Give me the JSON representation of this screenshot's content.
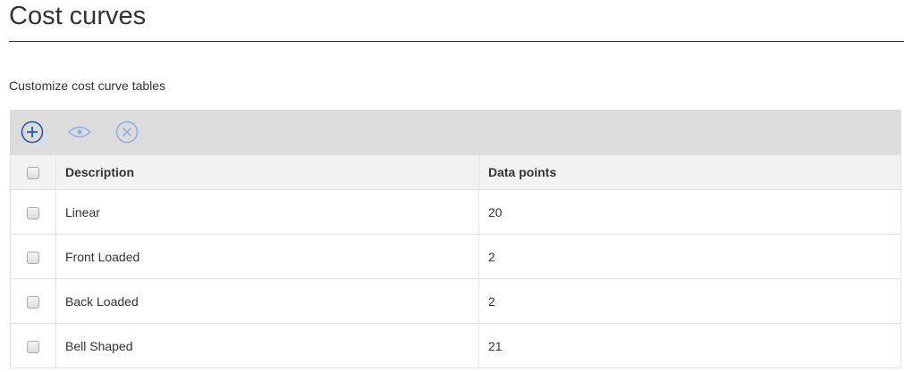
{
  "page": {
    "title": "Cost curves",
    "subtitle": "Customize cost curve tables"
  },
  "toolbar": {
    "icons": [
      "add-circle-icon",
      "eye-icon",
      "close-circle-icon"
    ],
    "colors": {
      "active": "#1a5fc4",
      "disabled": "#8fb0dd"
    }
  },
  "table": {
    "headers": [
      "Description",
      "Data points"
    ],
    "rows": [
      {
        "description": "Linear",
        "points": "20"
      },
      {
        "description": "Front Loaded",
        "points": "2"
      },
      {
        "description": "Back Loaded",
        "points": "2"
      },
      {
        "description": "Bell Shaped",
        "points": "21"
      }
    ]
  }
}
